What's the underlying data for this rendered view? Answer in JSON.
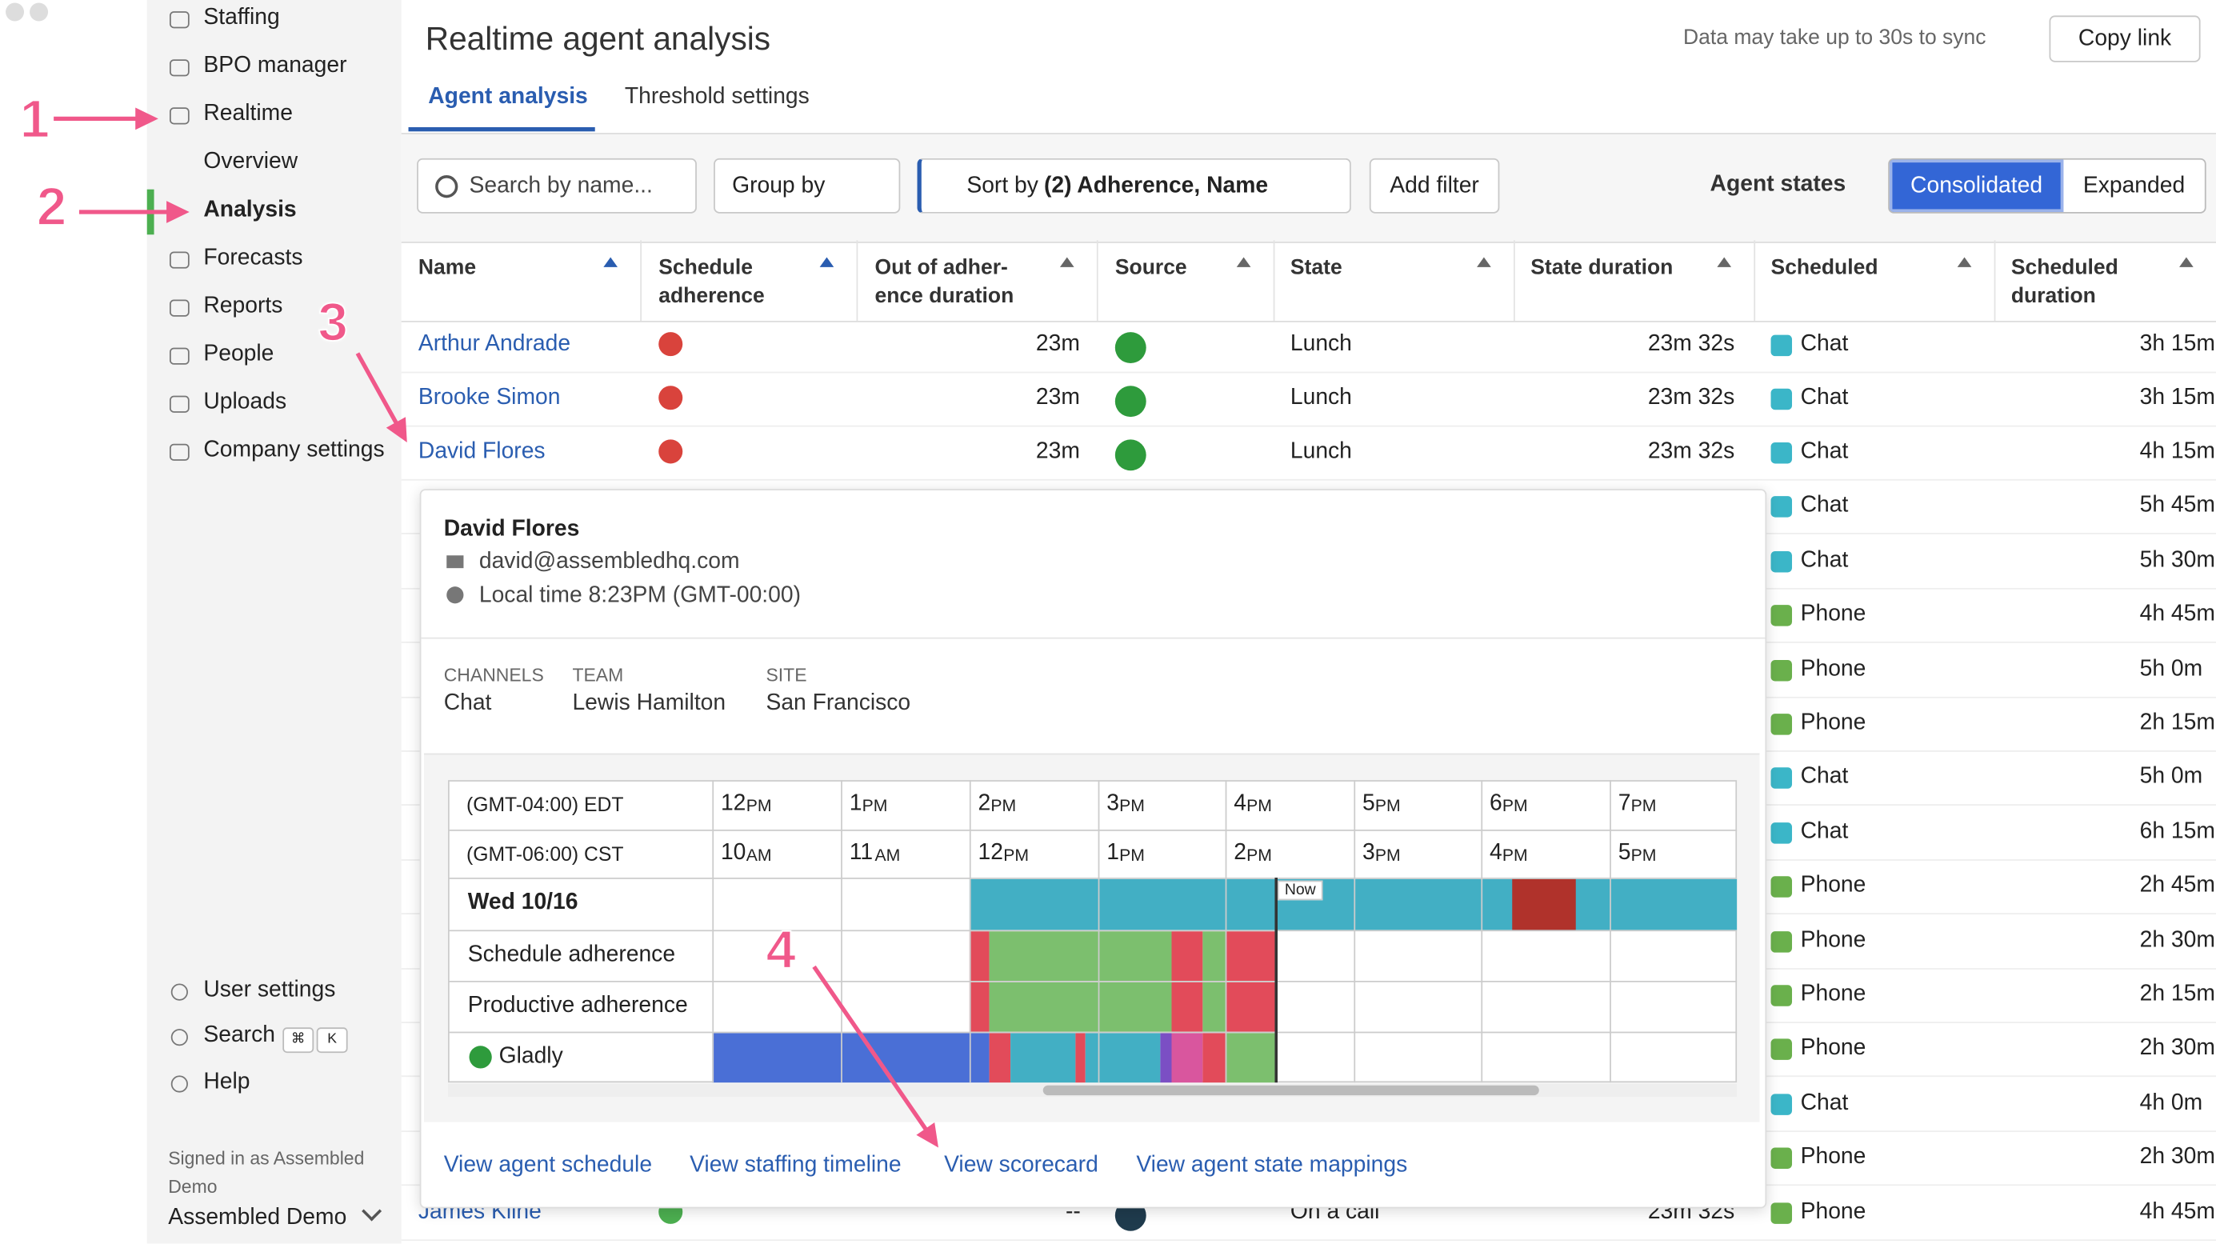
{
  "sidebar": {
    "items": [
      "Staffing",
      "BPO manager",
      "Realtime",
      "Overview",
      "Analysis",
      "Forecasts",
      "Reports",
      "People",
      "Uploads",
      "Company settings"
    ],
    "bottom": [
      "User settings",
      "Search",
      "Help"
    ],
    "search_keys": [
      "⌘",
      "K"
    ],
    "signed_in": "Signed in as Assembled Demo",
    "account": "Assembled Demo"
  },
  "annotations": [
    "1",
    "2",
    "3",
    "4"
  ],
  "header": {
    "title": "Realtime agent analysis",
    "sync_note": "Data may take up to 30s to sync",
    "copy_link": "Copy link"
  },
  "tabs": [
    "Agent analysis",
    "Threshold settings"
  ],
  "toolbar": {
    "search_placeholder": "Search by name...",
    "group_by": "Group by",
    "sort_prefix": "Sort by",
    "sort_value": "(2) Adherence, Name",
    "add_filter": "Add filter",
    "agent_states_label": "Agent states",
    "toggle": [
      "Consolidated",
      "Expanded"
    ]
  },
  "table": {
    "columns": [
      "Name",
      "Schedule adherence",
      "Out of adher-ence duration",
      "Source",
      "State",
      "State duration",
      "Scheduled",
      "Scheduled duration"
    ],
    "rows": [
      {
        "name": "Arthur Andrade",
        "out": "23m",
        "state": "Lunch",
        "state_duration": "23m 32s",
        "scheduled": "Chat",
        "scheduled_duration": "3h 15m"
      },
      {
        "name": "Brooke Simon",
        "out": "23m",
        "state": "Lunch",
        "state_duration": "23m 32s",
        "scheduled": "Chat",
        "scheduled_duration": "3h 15m"
      },
      {
        "name": "David Flores",
        "out": "23m",
        "state": "Lunch",
        "state_duration": "23m 32s",
        "scheduled": "Chat",
        "scheduled_duration": "4h 15m"
      },
      {
        "scheduled": "Chat",
        "scheduled_duration": "5h 45m"
      },
      {
        "scheduled": "Chat",
        "scheduled_duration": "5h 30m"
      },
      {
        "scheduled": "Phone",
        "scheduled_duration": "4h 45m"
      },
      {
        "scheduled": "Phone",
        "scheduled_duration": "5h 0m"
      },
      {
        "scheduled": "Phone",
        "scheduled_duration": "2h 15m"
      },
      {
        "scheduled": "Chat",
        "scheduled_duration": "5h 0m"
      },
      {
        "scheduled": "Chat",
        "scheduled_duration": "6h 15m"
      },
      {
        "scheduled": "Phone",
        "scheduled_duration": "2h 45m"
      },
      {
        "scheduled": "Phone",
        "scheduled_duration": "2h 30m"
      },
      {
        "scheduled": "Phone",
        "scheduled_duration": "2h 15m"
      },
      {
        "scheduled": "Phone",
        "scheduled_duration": "2h 30m"
      },
      {
        "scheduled": "Chat",
        "scheduled_duration": "4h 0m"
      },
      {
        "scheduled": "Phone",
        "scheduled_duration": "2h 30m"
      },
      {
        "name": "James Kline",
        "out": "--",
        "state": "On a call",
        "state_duration": "23m 32s",
        "scheduled": "Phone",
        "scheduled_duration": "4h 45m"
      }
    ]
  },
  "popover": {
    "name": "David Flores",
    "email": "david@assembledhq.com",
    "local_time": "Local time 8:23PM (GMT-00:00)",
    "fields": [
      {
        "label": "CHANNELS",
        "value": "Chat"
      },
      {
        "label": "TEAM",
        "value": "Lewis Hamilton"
      },
      {
        "label": "SITE",
        "value": "San Francisco"
      }
    ],
    "zones": [
      {
        "label": "(GMT-04:00) EDT",
        "hours": [
          {
            "num": "12",
            "suffix": "PM"
          },
          {
            "num": "1",
            "suffix": "PM"
          },
          {
            "num": "2",
            "suffix": "PM"
          },
          {
            "num": "3",
            "suffix": "PM"
          },
          {
            "num": "4",
            "suffix": "PM"
          },
          {
            "num": "5",
            "suffix": "PM"
          },
          {
            "num": "6",
            "suffix": "PM"
          },
          {
            "num": "7",
            "suffix": "PM"
          }
        ]
      },
      {
        "label": "(GMT-06:00) CST",
        "hours": [
          {
            "num": "10",
            "suffix": "AM"
          },
          {
            "num": "11",
            "suffix": "AM"
          },
          {
            "num": "12",
            "suffix": "PM"
          },
          {
            "num": "1",
            "suffix": "PM"
          },
          {
            "num": "2",
            "suffix": "PM"
          },
          {
            "num": "3",
            "suffix": "PM"
          },
          {
            "num": "4",
            "suffix": "PM"
          },
          {
            "num": "5",
            "suffix": "PM"
          }
        ]
      }
    ],
    "day": "Wed 10/16",
    "row_labels": [
      "Schedule adherence",
      "Productive adherence",
      "Gladly"
    ],
    "now": "Now",
    "links": [
      "View agent schedule",
      "View staffing timeline",
      "View scorecard",
      "View agent state mappings"
    ]
  }
}
